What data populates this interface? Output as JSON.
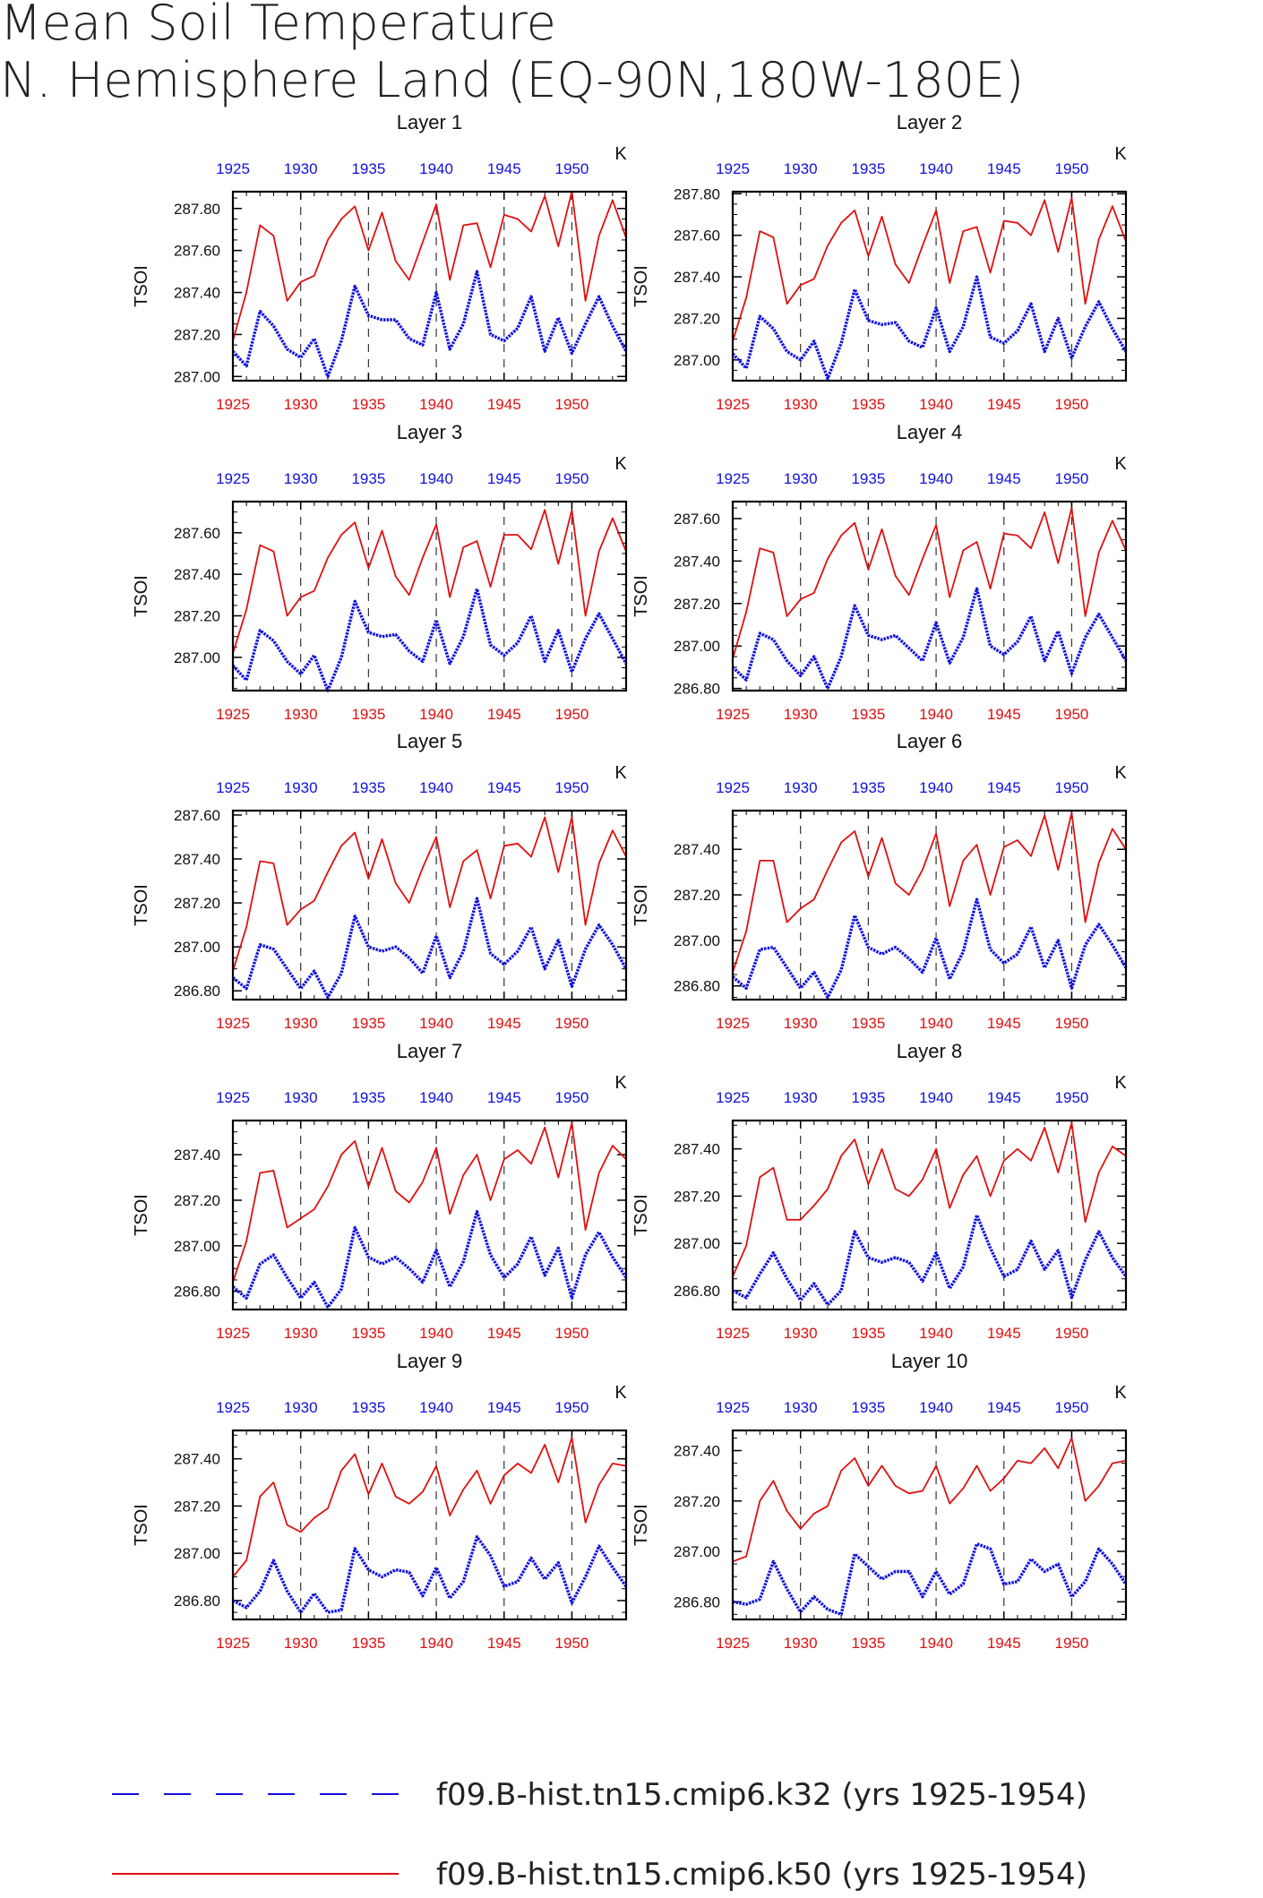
{
  "title_line1": "Mean Soil Temperature",
  "title_line2": "N. Hemisphere Land (EQ-90N,180W-180E)",
  "unit": "K",
  "ylabel": "TSOI",
  "colors": {
    "series_k50": "#e01010",
    "series_k32": "#1010e0"
  },
  "legend": [
    {
      "label": "f09.B-hist.tn15.cmip6.k32 (yrs 1925-1954)",
      "color": "#1010e0",
      "style": "dashed"
    },
    {
      "label": "f09.B-hist.tn15.cmip6.k50 (yrs 1925-1954)",
      "color": "#e01010",
      "style": "solid"
    }
  ],
  "chart_data": [
    {
      "type": "line",
      "title": "Layer 1",
      "xlim": [
        1925,
        1954
      ],
      "ylim": [
        286.98,
        287.88
      ],
      "x_ticks": [
        1925,
        1930,
        1935,
        1940,
        1945,
        1950
      ],
      "y_ticks": [
        "287.00",
        "287.20",
        "287.40",
        "287.60",
        "287.80"
      ],
      "series": [
        {
          "name": "f09.B-hist.tn15.cmip6.k50 (yrs 1925-1954)",
          "values": [
            287.17,
            287.4,
            287.72,
            287.67,
            287.36,
            287.45,
            287.48,
            287.65,
            287.75,
            287.81,
            287.6,
            287.78,
            287.55,
            287.46,
            287.64,
            287.82,
            287.46,
            287.72,
            287.73,
            287.52,
            287.77,
            287.75,
            287.69,
            287.86,
            287.62,
            287.88,
            287.36,
            287.67,
            287.84,
            287.66
          ]
        },
        {
          "name": "f09.B-hist.tn15.cmip6.k32 (yrs 1925-1954)",
          "values": [
            287.12,
            287.05,
            287.31,
            287.24,
            287.13,
            287.09,
            287.18,
            287.0,
            287.17,
            287.43,
            287.29,
            287.27,
            287.27,
            287.18,
            287.15,
            287.4,
            287.13,
            287.25,
            287.5,
            287.2,
            287.17,
            287.23,
            287.38,
            287.12,
            287.28,
            287.11,
            287.25,
            287.38,
            287.24,
            287.12
          ]
        }
      ]
    },
    {
      "type": "line",
      "title": "Layer 2",
      "xlim": [
        1925,
        1954
      ],
      "ylim": [
        286.9,
        287.81
      ],
      "x_ticks": [
        1925,
        1930,
        1935,
        1940,
        1945,
        1950
      ],
      "y_ticks": [
        "287.00",
        "287.20",
        "287.40",
        "287.60",
        "287.80"
      ],
      "series": [
        {
          "name": "f09.B-hist.tn15.cmip6.k50 (yrs 1925-1954)",
          "values": [
            287.09,
            287.3,
            287.62,
            287.59,
            287.27,
            287.36,
            287.39,
            287.55,
            287.66,
            287.72,
            287.5,
            287.69,
            287.46,
            287.37,
            287.55,
            287.72,
            287.37,
            287.62,
            287.64,
            287.42,
            287.67,
            287.66,
            287.6,
            287.77,
            287.52,
            287.78,
            287.27,
            287.58,
            287.74,
            287.57
          ]
        },
        {
          "name": "f09.B-hist.tn15.cmip6.k32 (yrs 1925-1954)",
          "values": [
            287.03,
            286.96,
            287.21,
            287.15,
            287.04,
            287.0,
            287.09,
            286.91,
            287.08,
            287.34,
            287.19,
            287.17,
            287.18,
            287.09,
            287.06,
            287.25,
            287.04,
            287.16,
            287.4,
            287.11,
            287.08,
            287.14,
            287.27,
            287.04,
            287.2,
            287.01,
            287.16,
            287.28,
            287.15,
            287.04
          ]
        }
      ]
    },
    {
      "type": "line",
      "title": "Layer 3",
      "xlim": [
        1925,
        1954
      ],
      "ylim": [
        286.84,
        287.75
      ],
      "x_ticks": [
        1925,
        1930,
        1935,
        1940,
        1945,
        1950
      ],
      "y_ticks": [
        "287.00",
        "287.20",
        "287.40",
        "287.60"
      ],
      "series": [
        {
          "name": "f09.B-hist.tn15.cmip6.k50 (yrs 1925-1954)",
          "values": [
            287.02,
            287.23,
            287.54,
            287.51,
            287.2,
            287.29,
            287.32,
            287.48,
            287.59,
            287.65,
            287.43,
            287.61,
            287.39,
            287.3,
            287.48,
            287.64,
            287.29,
            287.53,
            287.56,
            287.34,
            287.59,
            287.59,
            287.52,
            287.71,
            287.45,
            287.71,
            287.2,
            287.51,
            287.67,
            287.51
          ]
        },
        {
          "name": "f09.B-hist.tn15.cmip6.k32 (yrs 1925-1954)",
          "values": [
            286.96,
            286.89,
            287.13,
            287.08,
            286.98,
            286.92,
            287.01,
            286.84,
            287.0,
            287.27,
            287.12,
            287.1,
            287.11,
            287.03,
            286.98,
            287.18,
            286.97,
            287.1,
            287.33,
            287.06,
            287.01,
            287.07,
            287.2,
            286.98,
            287.13,
            286.93,
            287.09,
            287.21,
            287.09,
            286.97
          ]
        }
      ]
    },
    {
      "type": "line",
      "title": "Layer 4",
      "xlim": [
        1925,
        1954
      ],
      "ylim": [
        286.79,
        287.68
      ],
      "x_ticks": [
        1925,
        1930,
        1935,
        1940,
        1945,
        1950
      ],
      "y_ticks": [
        "286.80",
        "287.00",
        "287.20",
        "287.40",
        "287.60"
      ],
      "series": [
        {
          "name": "f09.B-hist.tn15.cmip6.k50 (yrs 1925-1954)",
          "values": [
            286.94,
            287.16,
            287.46,
            287.44,
            287.14,
            287.22,
            287.25,
            287.41,
            287.52,
            287.58,
            287.36,
            287.55,
            287.33,
            287.24,
            287.41,
            287.57,
            287.23,
            287.45,
            287.49,
            287.27,
            287.53,
            287.52,
            287.46,
            287.63,
            287.39,
            287.65,
            287.14,
            287.44,
            287.59,
            287.45
          ]
        },
        {
          "name": "f09.B-hist.tn15.cmip6.k32 (yrs 1925-1954)",
          "values": [
            286.9,
            286.84,
            287.06,
            287.03,
            286.93,
            286.86,
            286.95,
            286.8,
            286.95,
            287.19,
            287.05,
            287.03,
            287.05,
            286.99,
            286.93,
            287.11,
            286.92,
            287.04,
            287.27,
            287.0,
            286.96,
            287.02,
            287.14,
            286.93,
            287.07,
            286.87,
            287.04,
            287.15,
            287.04,
            286.93
          ]
        }
      ]
    },
    {
      "type": "line",
      "title": "Layer 5",
      "xlim": [
        1925,
        1954
      ],
      "ylim": [
        286.76,
        287.62
      ],
      "x_ticks": [
        1925,
        1930,
        1935,
        1940,
        1945,
        1950
      ],
      "y_ticks": [
        "286.80",
        "287.00",
        "287.20",
        "287.40",
        "287.60"
      ],
      "series": [
        {
          "name": "f09.B-hist.tn15.cmip6.k50 (yrs 1925-1954)",
          "values": [
            286.89,
            287.09,
            287.39,
            287.38,
            287.1,
            287.17,
            287.21,
            287.34,
            287.46,
            287.52,
            287.31,
            287.49,
            287.29,
            287.2,
            287.36,
            287.5,
            287.18,
            287.39,
            287.44,
            287.22,
            287.46,
            287.47,
            287.41,
            287.59,
            287.34,
            287.59,
            287.1,
            287.38,
            287.53,
            287.41
          ]
        },
        {
          "name": "f09.B-hist.tn15.cmip6.k32 (yrs 1925-1954)",
          "values": [
            286.86,
            286.81,
            287.01,
            286.99,
            286.9,
            286.81,
            286.89,
            286.77,
            286.88,
            287.14,
            287.0,
            286.98,
            287.0,
            286.95,
            286.88,
            287.05,
            286.86,
            286.98,
            287.22,
            286.97,
            286.92,
            286.98,
            287.09,
            286.9,
            287.03,
            286.82,
            286.99,
            287.1,
            287.01,
            286.9
          ]
        }
      ]
    },
    {
      "type": "line",
      "title": "Layer 6",
      "xlim": [
        1925,
        1954
      ],
      "ylim": [
        286.74,
        287.57
      ],
      "x_ticks": [
        1925,
        1930,
        1935,
        1940,
        1945,
        1950
      ],
      "y_ticks": [
        "286.80",
        "287.00",
        "287.20",
        "287.40"
      ],
      "series": [
        {
          "name": "f09.B-hist.tn15.cmip6.k50 (yrs 1925-1954)",
          "values": [
            286.86,
            287.04,
            287.35,
            287.35,
            287.08,
            287.14,
            287.18,
            287.31,
            287.43,
            287.48,
            287.28,
            287.45,
            287.25,
            287.2,
            287.31,
            287.47,
            287.15,
            287.35,
            287.42,
            287.2,
            287.41,
            287.44,
            287.37,
            287.55,
            287.31,
            287.56,
            287.08,
            287.34,
            287.49,
            287.4
          ]
        },
        {
          "name": "f09.B-hist.tn15.cmip6.k32 (yrs 1925-1954)",
          "values": [
            286.84,
            286.79,
            286.96,
            286.97,
            286.88,
            286.79,
            286.86,
            286.75,
            286.87,
            287.11,
            286.97,
            286.94,
            286.97,
            286.92,
            286.86,
            287.01,
            286.83,
            286.95,
            287.18,
            286.96,
            286.9,
            286.94,
            287.06,
            286.88,
            287.0,
            286.79,
            286.98,
            287.07,
            286.98,
            286.88
          ]
        }
      ]
    },
    {
      "type": "line",
      "title": "Layer 7",
      "xlim": [
        1925,
        1954
      ],
      "ylim": [
        286.72,
        287.55
      ],
      "x_ticks": [
        1925,
        1930,
        1935,
        1940,
        1945,
        1950
      ],
      "y_ticks": [
        "286.80",
        "287.00",
        "287.20",
        "287.40"
      ],
      "series": [
        {
          "name": "f09.B-hist.tn15.cmip6.k50 (yrs 1925-1954)",
          "values": [
            286.84,
            287.02,
            287.32,
            287.33,
            287.08,
            287.12,
            287.16,
            287.26,
            287.4,
            287.46,
            287.26,
            287.43,
            287.24,
            287.19,
            287.28,
            287.43,
            287.14,
            287.31,
            287.4,
            287.2,
            287.38,
            287.42,
            287.36,
            287.52,
            287.3,
            287.54,
            287.07,
            287.32,
            287.44,
            287.38
          ]
        },
        {
          "name": "f09.B-hist.tn15.cmip6.k32 (yrs 1925-1954)",
          "values": [
            286.82,
            286.77,
            286.92,
            286.96,
            286.86,
            286.77,
            286.84,
            286.73,
            286.81,
            287.08,
            286.95,
            286.92,
            286.95,
            286.9,
            286.84,
            286.98,
            286.82,
            286.93,
            287.15,
            286.96,
            286.86,
            286.92,
            287.04,
            286.87,
            286.99,
            286.77,
            286.96,
            287.06,
            286.95,
            286.86
          ]
        }
      ]
    },
    {
      "type": "line",
      "title": "Layer 8",
      "xlim": [
        1925,
        1954
      ],
      "ylim": [
        286.72,
        287.52
      ],
      "x_ticks": [
        1925,
        1930,
        1935,
        1940,
        1945,
        1950
      ],
      "y_ticks": [
        "286.80",
        "287.00",
        "287.20",
        "287.40"
      ],
      "series": [
        {
          "name": "f09.B-hist.tn15.cmip6.k50 (yrs 1925-1954)",
          "values": [
            286.86,
            286.99,
            287.28,
            287.32,
            287.1,
            287.1,
            287.16,
            287.23,
            287.37,
            287.44,
            287.25,
            287.4,
            287.23,
            287.2,
            287.27,
            287.4,
            287.15,
            287.29,
            287.37,
            287.2,
            287.35,
            287.4,
            287.35,
            287.49,
            287.3,
            287.51,
            287.09,
            287.3,
            287.41,
            287.37
          ]
        },
        {
          "name": "f09.B-hist.tn15.cmip6.k32 (yrs 1925-1954)",
          "values": [
            286.8,
            286.77,
            286.87,
            286.96,
            286.85,
            286.76,
            286.83,
            286.74,
            286.8,
            287.05,
            286.94,
            286.92,
            286.94,
            286.92,
            286.84,
            286.96,
            286.81,
            286.9,
            287.12,
            286.98,
            286.86,
            286.89,
            287.01,
            286.89,
            286.97,
            286.77,
            286.93,
            287.05,
            286.94,
            286.86
          ]
        }
      ]
    },
    {
      "type": "line",
      "title": "Layer 9",
      "xlim": [
        1925,
        1954
      ],
      "ylim": [
        286.72,
        287.52
      ],
      "x_ticks": [
        1925,
        1930,
        1935,
        1940,
        1945,
        1950
      ],
      "y_ticks": [
        "286.80",
        "287.00",
        "287.20",
        "287.40"
      ],
      "series": [
        {
          "name": "f09.B-hist.tn15.cmip6.k50 (yrs 1925-1954)",
          "values": [
            286.9,
            286.97,
            287.24,
            287.3,
            287.12,
            287.09,
            287.15,
            287.19,
            287.35,
            287.42,
            287.25,
            287.38,
            287.24,
            287.21,
            287.26,
            287.37,
            287.16,
            287.27,
            287.35,
            287.21,
            287.33,
            287.38,
            287.34,
            287.46,
            287.3,
            287.49,
            287.13,
            287.29,
            287.38,
            287.37
          ]
        },
        {
          "name": "f09.B-hist.tn15.cmip6.k32 (yrs 1925-1954)",
          "values": [
            286.8,
            286.77,
            286.84,
            286.97,
            286.84,
            286.75,
            286.83,
            286.75,
            286.76,
            287.02,
            286.93,
            286.9,
            286.93,
            286.92,
            286.82,
            286.94,
            286.81,
            286.88,
            287.07,
            286.99,
            286.86,
            286.88,
            286.98,
            286.89,
            286.96,
            286.79,
            286.9,
            287.03,
            286.94,
            286.86
          ]
        }
      ]
    },
    {
      "type": "line",
      "title": "Layer 10",
      "xlim": [
        1925,
        1954
      ],
      "ylim": [
        286.73,
        287.48
      ],
      "x_ticks": [
        1925,
        1930,
        1935,
        1940,
        1945,
        1950
      ],
      "y_ticks": [
        "286.80",
        "287.00",
        "287.20",
        "287.40"
      ],
      "series": [
        {
          "name": "f09.B-hist.tn15.cmip6.k50 (yrs 1925-1954)",
          "values": [
            286.96,
            286.98,
            287.2,
            287.28,
            287.16,
            287.09,
            287.15,
            287.18,
            287.32,
            287.37,
            287.26,
            287.34,
            287.26,
            287.23,
            287.24,
            287.34,
            287.19,
            287.25,
            287.34,
            287.24,
            287.29,
            287.36,
            287.35,
            287.41,
            287.33,
            287.45,
            287.2,
            287.26,
            287.35,
            287.36
          ]
        },
        {
          "name": "f09.B-hist.tn15.cmip6.k32 (yrs 1925-1954)",
          "values": [
            286.8,
            286.79,
            286.81,
            286.96,
            286.85,
            286.76,
            286.82,
            286.77,
            286.75,
            286.99,
            286.94,
            286.89,
            286.92,
            286.92,
            286.82,
            286.92,
            286.83,
            286.87,
            287.03,
            287.01,
            286.87,
            286.88,
            286.97,
            286.92,
            286.95,
            286.82,
            286.88,
            287.01,
            286.95,
            286.87
          ]
        }
      ]
    }
  ]
}
